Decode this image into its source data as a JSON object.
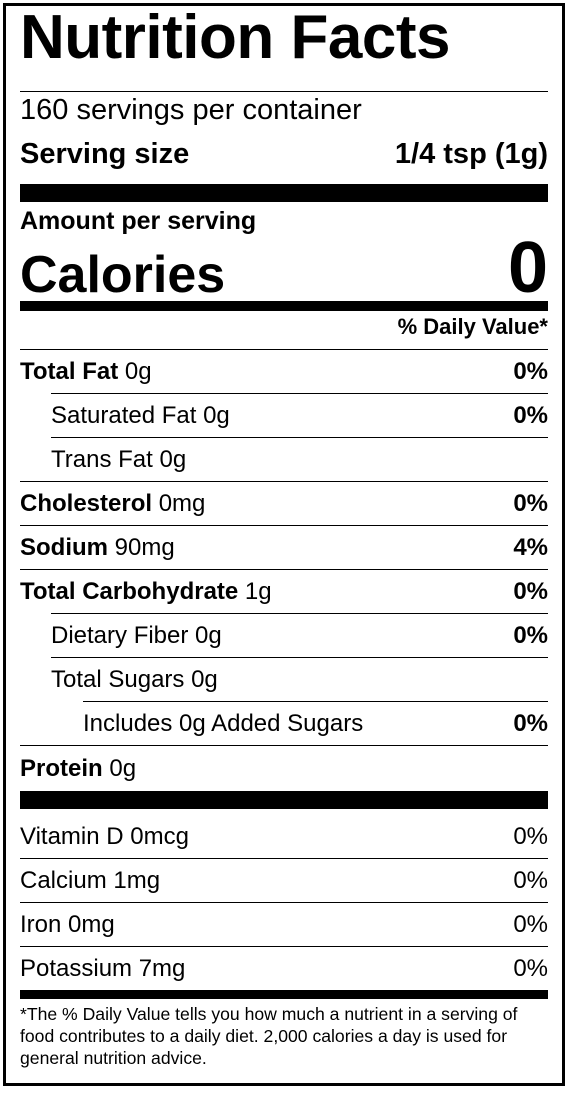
{
  "title": "Nutrition Facts",
  "servings_per_container": "160 servings per container",
  "serving_size_label": "Serving size",
  "serving_size_value": "1/4 tsp (1g)",
  "amount_per_serving": "Amount per serving",
  "calories_label": "Calories",
  "calories_value": "0",
  "daily_value_header": "% Daily Value*",
  "nutrients": [
    {
      "name": "Total Fat",
      "amount": "0g",
      "dv": "0%"
    },
    {
      "name": "Saturated Fat 0g",
      "dv": "0%"
    },
    {
      "name": "Trans Fat 0g",
      "dv": ""
    },
    {
      "name": "Cholesterol",
      "amount": "0mg",
      "dv": "0%"
    },
    {
      "name": "Sodium",
      "amount": "90mg",
      "dv": "4%"
    },
    {
      "name": "Total Carbohydrate",
      "amount": "1g",
      "dv": "0%"
    },
    {
      "name": "Dietary Fiber 0g",
      "dv": "0%"
    },
    {
      "name": "Total Sugars 0g",
      "dv": ""
    },
    {
      "name": "Includes 0g Added Sugars",
      "dv": "0%"
    },
    {
      "name": "Protein",
      "amount": "0g",
      "dv": ""
    }
  ],
  "vitamins": [
    {
      "name": "Vitamin D 0mcg",
      "dv": "0%"
    },
    {
      "name": "Calcium 1mg",
      "dv": "0%"
    },
    {
      "name": "Iron 0mg",
      "dv": "0%"
    },
    {
      "name": "Potassium 7mg",
      "dv": "0%"
    }
  ],
  "footnote": "*The % Daily Value tells you how much a nutrient in a serving of food contributes to a daily diet. 2,000 calories a day is used for general nutrition advice."
}
